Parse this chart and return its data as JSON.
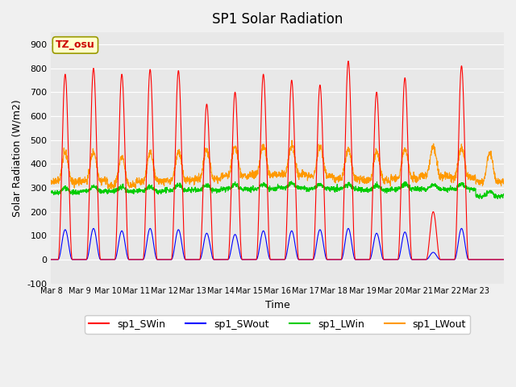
{
  "title": "SP1 Solar Radiation",
  "xlabel": "Time",
  "ylabel": "Solar Radiation (W/m2)",
  "ylim": [
    -100,
    950
  ],
  "yticks": [
    -100,
    0,
    100,
    200,
    300,
    400,
    500,
    600,
    700,
    800,
    900
  ],
  "xtick_labels": [
    "Mar 8",
    "Mar 9",
    "Mar 10",
    "Mar 11",
    "Mar 12",
    "Mar 13",
    "Mar 14",
    "Mar 15",
    "Mar 16",
    "Mar 17",
    "Mar 18",
    "Mar 19",
    "Mar 20",
    "Mar 21",
    "Mar 22",
    "Mar 23"
  ],
  "colors": {
    "sp1_SWin": "#ff0000",
    "sp1_SWout": "#0000ff",
    "sp1_LWin": "#00cc00",
    "sp1_LWout": "#ff9900"
  },
  "legend_labels": [
    "sp1_SWin",
    "sp1_SWout",
    "sp1_LWin",
    "sp1_LWout"
  ],
  "annotation_text": "TZ_osu",
  "annotation_color": "#cc0000",
  "annotation_bg": "#ffffcc",
  "annotation_border": "#999900",
  "bg_color": "#e8e8e8",
  "grid_color": "#ffffff",
  "n_days": 16,
  "pts_per_day": 144,
  "sw_peaks": [
    775,
    800,
    775,
    795,
    790,
    650,
    700,
    775,
    750,
    730,
    830,
    700,
    760,
    200,
    810,
    0
  ],
  "sw_out_peaks": [
    125,
    130,
    120,
    130,
    125,
    110,
    105,
    120,
    120,
    125,
    130,
    110,
    115,
    30,
    130,
    0
  ],
  "lw_in_bases": [
    280,
    285,
    285,
    285,
    290,
    290,
    295,
    295,
    300,
    295,
    295,
    290,
    295,
    295,
    295,
    265
  ],
  "lw_out_bases": [
    325,
    330,
    310,
    325,
    330,
    335,
    350,
    355,
    355,
    350,
    340,
    330,
    340,
    350,
    345,
    325
  ]
}
